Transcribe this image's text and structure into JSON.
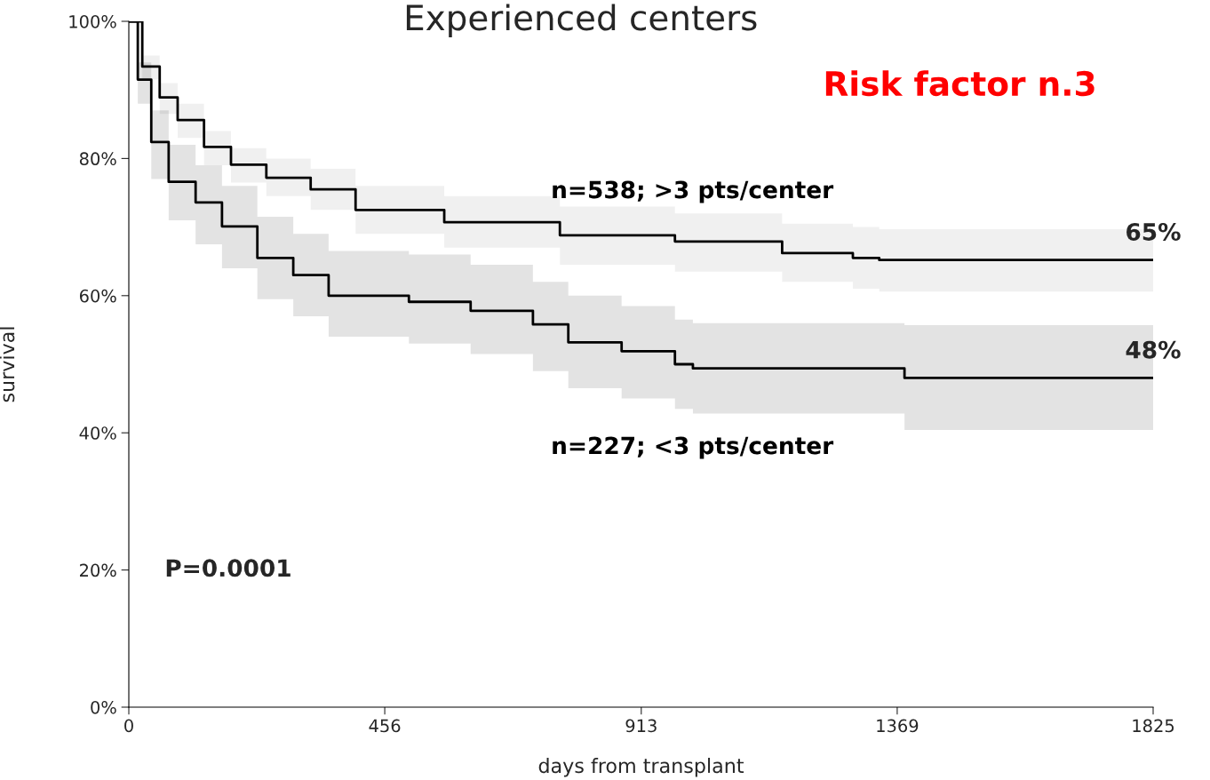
{
  "chart_data": {
    "type": "step",
    "title": "Experienced centers",
    "xlabel": "days from transplant",
    "ylabel": "survival",
    "xlim": [
      0,
      1825
    ],
    "xticks": [
      0,
      456,
      913,
      1369,
      1825
    ],
    "ylim": [
      0,
      100
    ],
    "yticks": [
      {
        "value": 0,
        "label": "0%"
      },
      {
        "value": 20,
        "label": "20%"
      },
      {
        "value": 40,
        "label": "40%"
      },
      {
        "value": 60,
        "label": "60%"
      },
      {
        "value": 80,
        "label": "80%"
      },
      {
        "value": 100,
        "label": "100%"
      }
    ],
    "grid": false,
    "legend": false,
    "series": [
      {
        "name": "n=538; >3 pts/center",
        "color": "#000000",
        "x": [
          0,
          24,
          55,
          87,
          134,
          182,
          245,
          324,
          404,
          562,
          768,
          973,
          1164,
          1290,
          1337,
          1825
        ],
        "values": [
          100,
          93.4,
          88.9,
          85.6,
          81.7,
          79.1,
          77.2,
          75.5,
          72.5,
          70.7,
          68.8,
          67.9,
          66.2,
          65.5,
          65.2,
          65.2
        ],
        "upper": [
          100,
          95,
          91,
          88,
          84,
          81.5,
          80,
          78.5,
          76,
          74.5,
          73,
          72,
          70.5,
          70,
          69.7,
          69.7
        ],
        "lower": [
          100,
          91.5,
          86.5,
          83,
          79,
          76.5,
          74.5,
          72.5,
          69,
          67,
          64.5,
          63.5,
          62,
          61,
          60.6,
          60.6
        ]
      },
      {
        "name": "n=227; <3 pts/center",
        "color": "#000000",
        "x": [
          0,
          16,
          40,
          71,
          119,
          166,
          229,
          293,
          356,
          499,
          609,
          720,
          783,
          878,
          973,
          1005,
          1382,
          1825
        ],
        "values": [
          100,
          91.5,
          82.4,
          76.6,
          73.6,
          70.1,
          65.5,
          63,
          60,
          59.1,
          57.8,
          55.8,
          53.2,
          51.9,
          50,
          49.4,
          48,
          48
        ],
        "upper": [
          100,
          94,
          87,
          82,
          79,
          76,
          71.5,
          69,
          66.5,
          66,
          64.5,
          62,
          60,
          58.5,
          56.5,
          56,
          55.7,
          55.7
        ],
        "lower": [
          100,
          88,
          77,
          71,
          67.5,
          64,
          59.5,
          57,
          54,
          53,
          51.5,
          49,
          46.5,
          45,
          43.5,
          42.8,
          40.4,
          40.4
        ]
      }
    ],
    "annotations": [
      "Risk factor n.3",
      "P=0.0001",
      {
        "text": "65%",
        "x": 1825,
        "y": 65.2
      },
      {
        "text": "48%",
        "x": 1825,
        "y": 48
      }
    ]
  }
}
